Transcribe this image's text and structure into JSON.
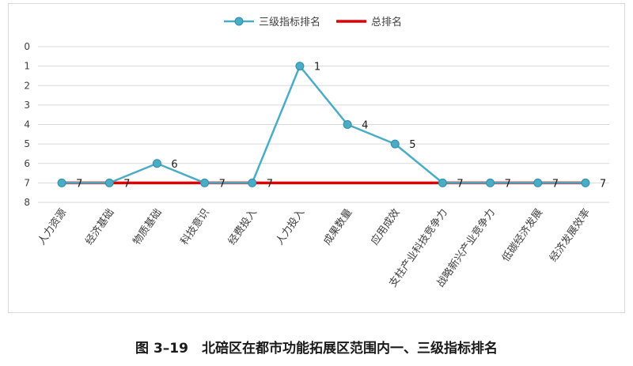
{
  "caption": "图 3–19　北碚区在都市功能拓展区范围内一、三级指标排名",
  "chart_data": {
    "type": "line",
    "categories": [
      "人力资源",
      "经济基础",
      "物质基础",
      "科技意识",
      "经费投入",
      "人力投入",
      "成果数量",
      "应用成效",
      "支柱产业科技竞争力",
      "战略新兴产业竞争力",
      "低碳经济发展",
      "经济发展效率"
    ],
    "series": [
      {
        "name": "三级指标排名",
        "values": [
          7,
          7,
          6,
          7,
          7,
          1,
          4,
          5,
          7,
          7,
          7,
          7
        ],
        "color": "#4bacc6",
        "marker": true
      },
      {
        "name": "总排名",
        "values": [
          7,
          7,
          7,
          7,
          7,
          7,
          7,
          7,
          7,
          7,
          7,
          7
        ],
        "color": "#e00000",
        "marker": false
      }
    ],
    "data_labels": [
      7,
      7,
      6,
      7,
      7,
      1,
      4,
      5,
      7,
      7,
      7,
      7
    ],
    "y_ticks": [
      0,
      1,
      2,
      3,
      4,
      5,
      6,
      7,
      8
    ],
    "ylim": [
      0,
      8
    ],
    "y_reversed": true,
    "grid": true,
    "legend_position": "top-center"
  }
}
